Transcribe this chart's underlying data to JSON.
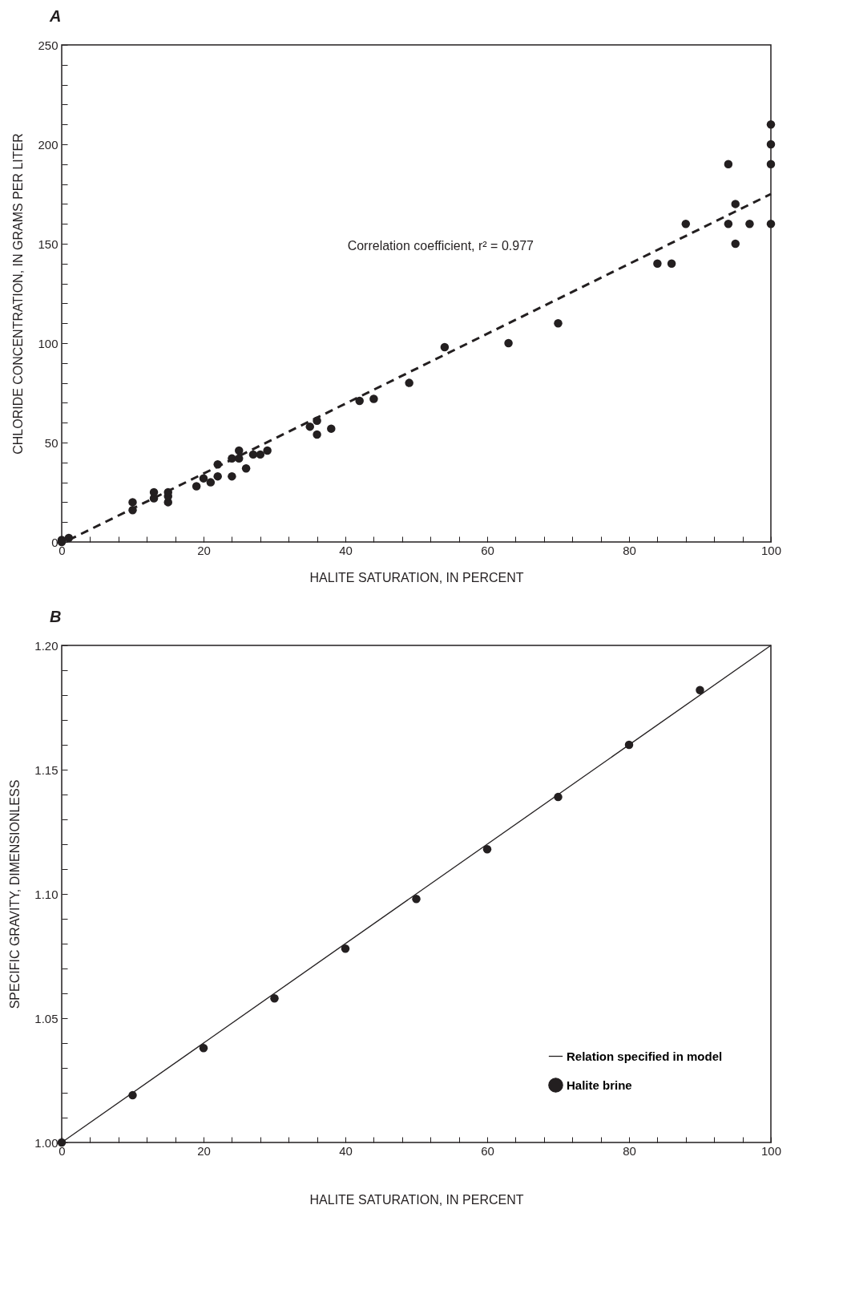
{
  "chart_data": [
    {
      "type": "scatter",
      "title": "A",
      "xlabel": "HALITE SATURATION, IN PERCENT",
      "ylabel": "CHLORIDE CONCENTRATION, IN GRAMS PER LITER",
      "xlim": [
        0,
        100
      ],
      "ylim": [
        0,
        250
      ],
      "xticks": [
        0,
        {
          "value": 4,
          "label": null
        },
        {
          "value": 8,
          "label": null
        },
        {
          "value": 12,
          "label": null
        },
        {
          "value": 16,
          "label": null
        },
        20,
        {
          "value": 24,
          "label": null
        },
        {
          "value": 28,
          "label": null
        },
        {
          "value": 32,
          "label": null
        },
        {
          "value": 36,
          "label": null
        },
        40,
        {
          "value": 44,
          "label": null
        },
        {
          "value": 48,
          "label": null
        },
        {
          "value": 52,
          "label": null
        },
        {
          "value": 56,
          "label": null
        },
        60,
        {
          "value": 64,
          "label": null
        },
        {
          "value": 68,
          "label": null
        },
        {
          "value": 72,
          "label": null
        },
        {
          "value": 76,
          "label": null
        },
        80,
        {
          "value": 84,
          "label": null
        },
        {
          "value": 88,
          "label": null
        },
        {
          "value": 92,
          "label": null
        },
        {
          "value": 96,
          "label": null
        },
        100
      ],
      "yticks": [
        0,
        {
          "value": 10,
          "label": null
        },
        {
          "value": 20,
          "label": null
        },
        {
          "value": 30,
          "label": null
        },
        {
          "value": 40,
          "label": null
        },
        50,
        {
          "value": 60,
          "label": null
        },
        {
          "value": 70,
          "label": null
        },
        {
          "value": 80,
          "label": null
        },
        {
          "value": 90,
          "label": null
        },
        100,
        {
          "value": 110,
          "label": null
        },
        {
          "value": 120,
          "label": null
        },
        {
          "value": 130,
          "label": null
        },
        {
          "value": 140,
          "label": null
        },
        150,
        {
          "value": 160,
          "label": null
        },
        {
          "value": 170,
          "label": null
        },
        {
          "value": 180,
          "label": null
        },
        {
          "value": 190,
          "label": null
        },
        200,
        {
          "value": 210,
          "label": null
        },
        {
          "value": 220,
          "label": null
        },
        {
          "value": 230,
          "label": null
        },
        {
          "value": 240,
          "label": null
        },
        250
      ],
      "grid": false,
      "legend": false,
      "marker": "circle",
      "series": [
        {
          "type": "scatter",
          "color": "#231f20",
          "x": [
            0,
            0,
            1,
            10,
            10,
            13,
            13,
            15,
            15,
            15,
            19,
            20,
            21,
            22,
            22,
            24,
            24,
            25,
            25,
            26,
            27,
            28,
            29,
            35,
            36,
            36,
            38,
            42,
            44,
            49,
            54,
            63,
            70,
            84,
            86,
            88,
            94,
            94,
            95,
            95,
            97,
            100,
            100,
            100,
            100
          ],
          "values": [
            0,
            1,
            2,
            16,
            20,
            22,
            25,
            20,
            23,
            25,
            28,
            32,
            30,
            33,
            39,
            33,
            42,
            42,
            46,
            37,
            44,
            44,
            46,
            58,
            54,
            61,
            57,
            71,
            72,
            80,
            98,
            100,
            110,
            140,
            140,
            160,
            190,
            160,
            170,
            150,
            160,
            210,
            200,
            190,
            160
          ]
        },
        {
          "type": "line",
          "line_style": "dashed",
          "marker": "none",
          "color": "#231f20",
          "x": [
            1,
            100
          ],
          "values": [
            1,
            175
          ]
        }
      ],
      "annotations": [
        "Correlation coefficient, r² = 0.977"
      ]
    },
    {
      "type": "scatter",
      "title": "B",
      "xlabel": "HALITE SATURATION, IN PERCENT",
      "ylabel": "SPECIFIC GRAVITY, DIMENSIONLESS",
      "xlim": [
        0,
        100
      ],
      "ylim": [
        1.0,
        1.2
      ],
      "xticks": [
        0,
        {
          "value": 4,
          "label": null
        },
        {
          "value": 8,
          "label": null
        },
        {
          "value": 12,
          "label": null
        },
        {
          "value": 16,
          "label": null
        },
        20,
        {
          "value": 24,
          "label": null
        },
        {
          "value": 28,
          "label": null
        },
        {
          "value": 32,
          "label": null
        },
        {
          "value": 36,
          "label": null
        },
        40,
        {
          "value": 44,
          "label": null
        },
        {
          "value": 48,
          "label": null
        },
        {
          "value": 52,
          "label": null
        },
        {
          "value": 56,
          "label": null
        },
        60,
        {
          "value": 64,
          "label": null
        },
        {
          "value": 68,
          "label": null
        },
        {
          "value": 72,
          "label": null
        },
        {
          "value": 76,
          "label": null
        },
        80,
        {
          "value": 84,
          "label": null
        },
        {
          "value": 88,
          "label": null
        },
        {
          "value": 92,
          "label": null
        },
        {
          "value": 96,
          "label": null
        },
        100
      ],
      "yticks": [
        {
          "value": 1.0,
          "label": "1.00"
        },
        {
          "value": 1.01,
          "label": null
        },
        {
          "value": 1.02,
          "label": null
        },
        {
          "value": 1.03,
          "label": null
        },
        {
          "value": 1.04,
          "label": null
        },
        {
          "value": 1.05,
          "label": "1.05"
        },
        {
          "value": 1.06,
          "label": null
        },
        {
          "value": 1.07,
          "label": null
        },
        {
          "value": 1.08,
          "label": null
        },
        {
          "value": 1.09,
          "label": null
        },
        {
          "value": 1.1,
          "label": "1.10"
        },
        {
          "value": 1.11,
          "label": null
        },
        {
          "value": 1.12,
          "label": null
        },
        {
          "value": 1.13,
          "label": null
        },
        {
          "value": 1.14,
          "label": null
        },
        {
          "value": 1.15,
          "label": "1.15"
        },
        {
          "value": 1.16,
          "label": null
        },
        {
          "value": 1.17,
          "label": null
        },
        {
          "value": 1.18,
          "label": null
        },
        {
          "value": 1.19,
          "label": null
        },
        {
          "value": 1.2,
          "label": "1.20"
        }
      ],
      "grid": false,
      "legend": "bottom right",
      "marker": "circle",
      "series": [
        {
          "name": "Relation specified in model",
          "type": "line",
          "line_style": "solid",
          "marker": "none",
          "color": "#231f20",
          "x": [
            0,
            100
          ],
          "values": [
            1.0,
            1.2
          ]
        },
        {
          "name": "Halite brine",
          "type": "scatter",
          "color": "#231f20",
          "x": [
            0,
            10,
            20,
            30,
            40,
            50,
            60,
            70,
            80,
            90
          ],
          "values": [
            1.0,
            1.019,
            1.038,
            1.058,
            1.078,
            1.098,
            1.118,
            1.139,
            1.16,
            1.182
          ]
        }
      ]
    }
  ]
}
